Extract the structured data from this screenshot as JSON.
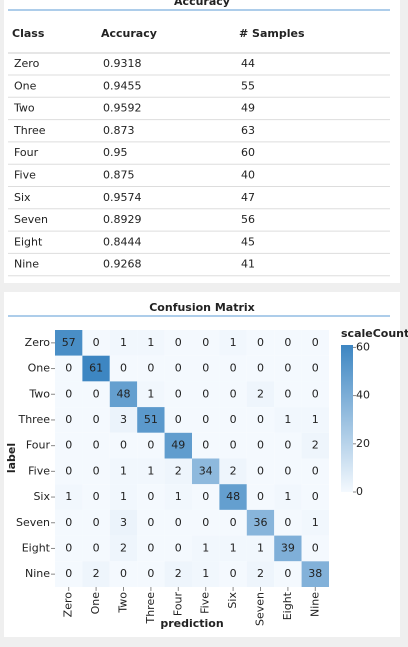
{
  "accuracy": {
    "title": "Accuracy",
    "columns": [
      "Class",
      "Accuracy",
      "# Samples"
    ],
    "rows": [
      [
        "Zero",
        0.9318,
        44
      ],
      [
        "One",
        0.9455,
        55
      ],
      [
        "Two",
        0.9592,
        49
      ],
      [
        "Three",
        0.873,
        63
      ],
      [
        "Four",
        0.95,
        60
      ],
      [
        "Five",
        0.875,
        40
      ],
      [
        "Six",
        0.9574,
        47
      ],
      [
        "Seven",
        0.8929,
        56
      ],
      [
        "Eight",
        0.8444,
        45
      ],
      [
        "Nine",
        0.9268,
        41
      ]
    ]
  },
  "chart_data": {
    "type": "heatmap",
    "title": "Confusion Matrix",
    "xlabel": "prediction",
    "ylabel": "label",
    "x": [
      "Zero",
      "One",
      "Two",
      "Three",
      "Four",
      "Five",
      "Six",
      "Seven",
      "Eight",
      "Nine"
    ],
    "y": [
      "Zero",
      "One",
      "Two",
      "Three",
      "Four",
      "Five",
      "Six",
      "Seven",
      "Eight",
      "Nine"
    ],
    "values": [
      [
        57,
        0,
        1,
        1,
        0,
        0,
        1,
        0,
        0,
        0
      ],
      [
        0,
        61,
        0,
        0,
        0,
        0,
        0,
        0,
        0,
        0
      ],
      [
        0,
        0,
        48,
        1,
        0,
        0,
        0,
        2,
        0,
        0
      ],
      [
        0,
        0,
        3,
        51,
        0,
        0,
        0,
        0,
        1,
        1
      ],
      [
        0,
        0,
        0,
        0,
        49,
        0,
        0,
        0,
        0,
        2
      ],
      [
        0,
        0,
        1,
        1,
        2,
        34,
        2,
        0,
        0,
        0
      ],
      [
        1,
        0,
        1,
        0,
        1,
        0,
        48,
        0,
        1,
        0
      ],
      [
        0,
        0,
        3,
        0,
        0,
        0,
        0,
        36,
        0,
        1
      ],
      [
        0,
        0,
        2,
        0,
        0,
        1,
        1,
        1,
        39,
        0
      ],
      [
        0,
        2,
        0,
        0,
        2,
        1,
        0,
        2,
        0,
        38
      ]
    ],
    "legend_title": "scaleCount",
    "clim": [
      0,
      61
    ],
    "cticks": [
      0,
      20,
      40,
      60
    ],
    "colors": [
      "#f4f9fe",
      "#3d86c2"
    ]
  }
}
